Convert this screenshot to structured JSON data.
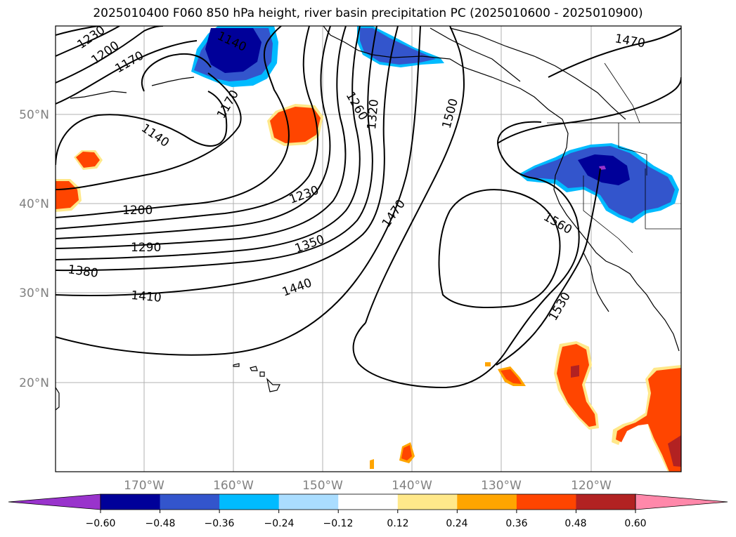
{
  "title": "2025010400 F060 850 hPa height, river basin precipitation PC (2025010600 - 2025010900)",
  "map": {
    "lat_labels": [
      "50°N",
      "40°N",
      "30°N",
      "20°N"
    ],
    "lon_labels": [
      "170°W",
      "160°W",
      "150°W",
      "140°W",
      "130°W",
      "120°W"
    ],
    "contour_labels": [
      "1230",
      "1200",
      "1170",
      "1140",
      "1140",
      "1170",
      "1200",
      "1230",
      "1260",
      "1290",
      "1320",
      "1350",
      "1380",
      "1410",
      "1440",
      "1470",
      "1470",
      "1500",
      "1530",
      "1560",
      "1470"
    ],
    "colors": {
      "gridline": "#b0b0b0",
      "tick_text": "#808080"
    }
  },
  "colorbar": {
    "colors": [
      "#9933cc",
      "#000099",
      "#3355cc",
      "#00bbff",
      "#aaddff",
      "#ffffff",
      "#ffe88a",
      "#ffa500",
      "#ff4500",
      "#b22222",
      "#ff88aa"
    ],
    "tick_labels": [
      "−0.60",
      "−0.48",
      "−0.36",
      "−0.24",
      "−0.12",
      "0.12",
      "0.24",
      "0.36",
      "0.48",
      "0.60"
    ]
  }
}
